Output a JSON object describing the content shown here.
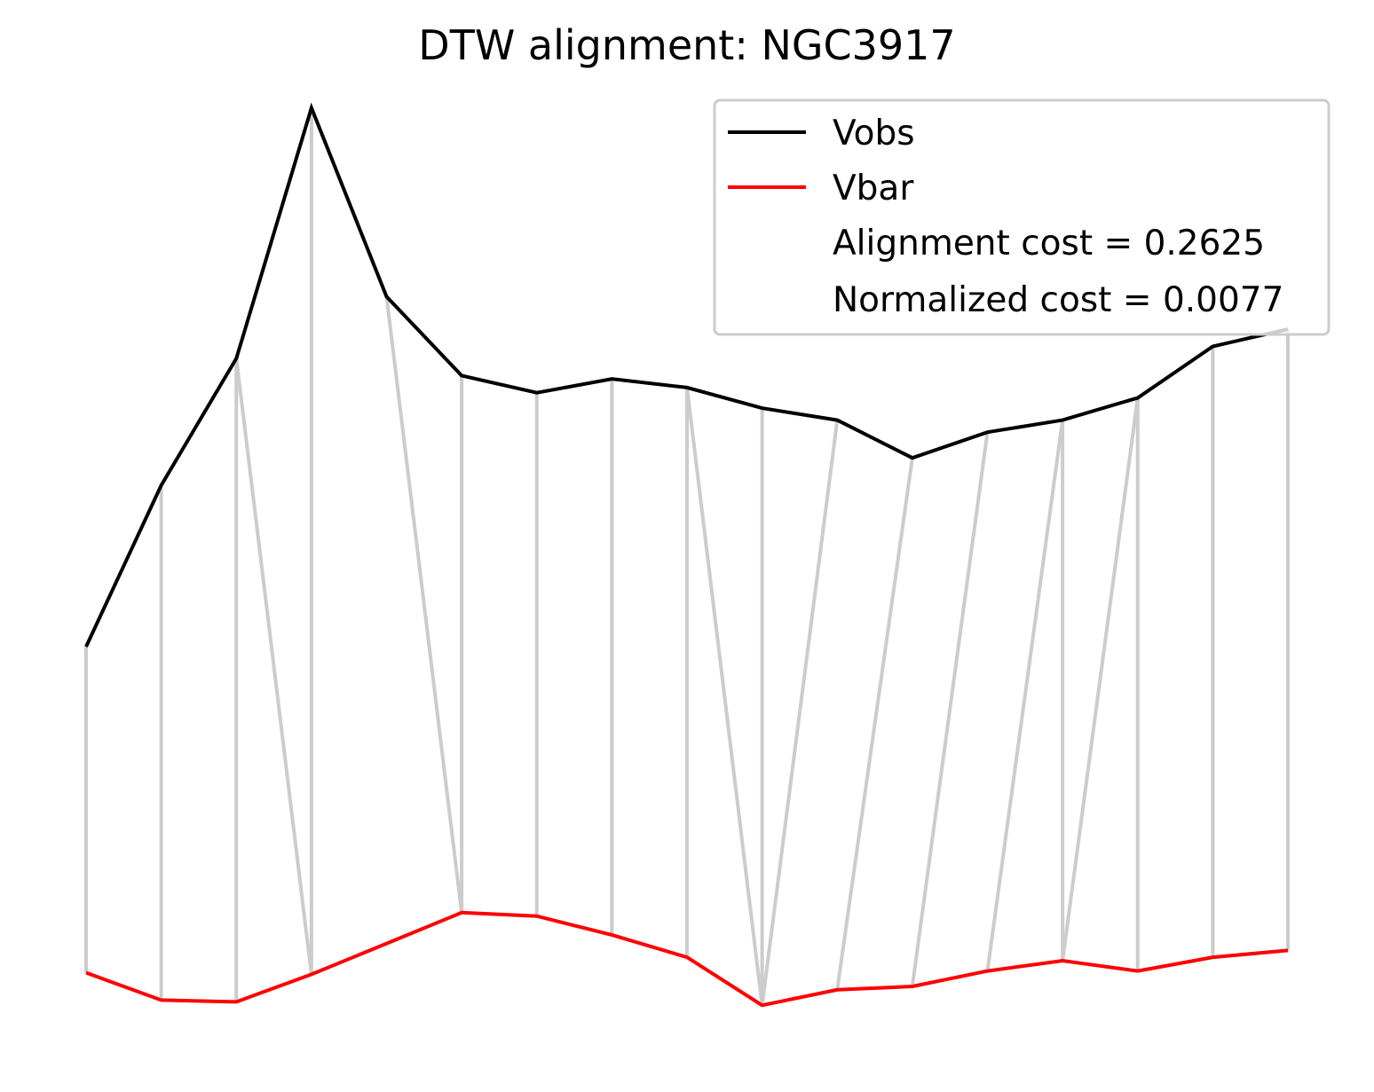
{
  "chart_data": {
    "type": "line",
    "title": "DTW alignment: NGC3917",
    "xlabel": "",
    "ylabel": "",
    "axes_visible": false,
    "grid": false,
    "legend_position": "top-right",
    "x": [
      0,
      1,
      2,
      3,
      4,
      5,
      6,
      7,
      8,
      9,
      10,
      11,
      12,
      13,
      14,
      15,
      16
    ],
    "series": [
      {
        "name": "Vobs",
        "color": "#000000",
        "values": [
          1.43,
          1.9,
          2.27,
          3.0,
          2.45,
          2.22,
          2.17,
          2.21,
          2.185,
          2.125,
          2.09,
          1.98,
          2.055,
          2.09,
          2.155,
          2.305,
          2.355
        ]
      },
      {
        "name": "Vbar",
        "color": "#ff0000",
        "values": [
          0.48,
          0.4,
          0.395,
          0.475,
          0.565,
          0.655,
          0.645,
          0.59,
          0.525,
          0.385,
          0.43,
          0.44,
          0.485,
          0.515,
          0.485,
          0.525,
          0.545
        ]
      }
    ],
    "alignment_color": "#cccccc",
    "alignment_pairs": [
      [
        0,
        0
      ],
      [
        1,
        1
      ],
      [
        2,
        2
      ],
      [
        2,
        3
      ],
      [
        3,
        3
      ],
      [
        4,
        5
      ],
      [
        5,
        5
      ],
      [
        6,
        6
      ],
      [
        7,
        7
      ],
      [
        8,
        8
      ],
      [
        8,
        9
      ],
      [
        9,
        9
      ],
      [
        10,
        9
      ],
      [
        11,
        10
      ],
      [
        12,
        11
      ],
      [
        13,
        12
      ],
      [
        13,
        13
      ],
      [
        14,
        13
      ],
      [
        14,
        14
      ],
      [
        15,
        15
      ],
      [
        16,
        16
      ]
    ],
    "ylim": [
      0.29,
      3.03
    ],
    "legend": {
      "entries": [
        "Vobs",
        "Vbar"
      ],
      "notes": [
        "Alignment cost = 0.2625",
        "Normalized cost = 0.0077"
      ]
    }
  }
}
